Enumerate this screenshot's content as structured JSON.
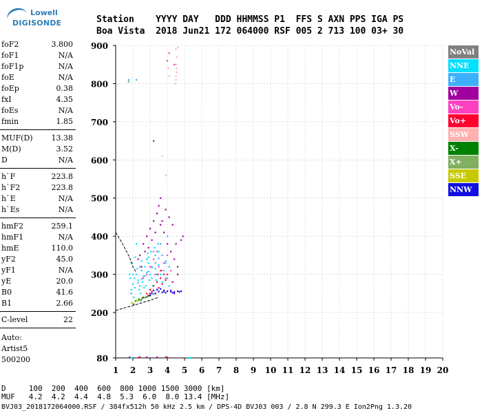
{
  "logo": {
    "line1": "Lowell",
    "line2": "DIGISONDE"
  },
  "header": {
    "row1": "Station    YYYY DAY   DDD HHMMSS P1  FFS S AXN PPS IGA PS",
    "row2": "Boa Vista  2018 Jun21 172 064000 RSF 005 2 713 100 03+ 30"
  },
  "params": [
    {
      "name": "foF2",
      "value": "3.800"
    },
    {
      "name": "foF1",
      "value": "N/A"
    },
    {
      "name": "foF1p",
      "value": "N/A"
    },
    {
      "name": "foE",
      "value": "N/A"
    },
    {
      "name": "foEp",
      "value": "0.38"
    },
    {
      "name": "fxI",
      "value": "4.35"
    },
    {
      "name": "foEs",
      "value": "N/A"
    },
    {
      "name": "fmin",
      "value": "1.85"
    },
    {
      "name": "MUF(D)",
      "value": "13.38"
    },
    {
      "name": "M(D)",
      "value": "3.52"
    },
    {
      "name": "D",
      "value": "N/A"
    },
    {
      "name": "h`F",
      "value": "223.8"
    },
    {
      "name": "h`F2",
      "value": "223.8"
    },
    {
      "name": "h`E",
      "value": "N/A"
    },
    {
      "name": "h`Es",
      "value": "N/A"
    },
    {
      "name": "hmF2",
      "value": "259.1"
    },
    {
      "name": "hmF1",
      "value": "N/A"
    },
    {
      "name": "hmE",
      "value": "110.0"
    },
    {
      "name": "yF2",
      "value": "45.0"
    },
    {
      "name": "yF1",
      "value": "N/A"
    },
    {
      "name": "yE",
      "value": "20.0"
    },
    {
      "name": "B0",
      "value": "41.6"
    },
    {
      "name": "B1",
      "value": "2.66"
    },
    {
      "name": "C-level",
      "value": "22"
    }
  ],
  "auto": {
    "line1": "Auto:",
    "line2": "Artist5",
    "line3": "500200"
  },
  "chart_data": {
    "type": "scatter",
    "title": "",
    "xlabel": "",
    "ylabel": "",
    "xlim": [
      1,
      20
    ],
    "ylim": [
      80,
      900
    ],
    "xticks": [
      1,
      2,
      3,
      4,
      5,
      6,
      7,
      8,
      9,
      10,
      11,
      12,
      13,
      14,
      15,
      16,
      17,
      18,
      19,
      20
    ],
    "yticks": [
      80,
      200,
      300,
      400,
      500,
      600,
      700,
      800,
      900
    ],
    "legend_position": "right",
    "series": [
      {
        "name": "NoVal",
        "color": "#808080",
        "points": []
      },
      {
        "name": "NNE",
        "color": "#00e0ff",
        "points": [
          [
            1.9,
            260
          ],
          [
            2.0,
            275
          ],
          [
            2.1,
            290
          ],
          [
            2.2,
            300
          ],
          [
            2.3,
            285
          ],
          [
            2.4,
            270
          ],
          [
            2.5,
            310
          ],
          [
            2.6,
            295
          ],
          [
            2.7,
            320
          ],
          [
            2.8,
            305
          ],
          [
            2.9,
            330
          ],
          [
            3.0,
            300
          ],
          [
            3.1,
            290
          ],
          [
            3.2,
            340
          ],
          [
            3.3,
            315
          ],
          [
            3.4,
            300
          ],
          [
            3.5,
            325
          ],
          [
            1.95,
            330
          ],
          [
            2.15,
            345
          ],
          [
            2.35,
            260
          ],
          [
            2.55,
            280
          ],
          [
            2.75,
            270
          ],
          [
            2.95,
            285
          ],
          [
            3.15,
            270
          ],
          [
            3.35,
            285
          ],
          [
            3.6,
            300
          ],
          [
            3.7,
            280
          ],
          [
            3.8,
            310
          ],
          [
            1.8,
            300
          ],
          [
            2.05,
            240
          ],
          [
            2.45,
            250
          ],
          [
            2.65,
            265
          ],
          [
            2.85,
            355
          ],
          [
            3.05,
            360
          ],
          [
            3.25,
            370
          ],
          [
            3.45,
            380
          ],
          [
            1.85,
            290
          ],
          [
            2.25,
            315
          ],
          [
            2.5,
            335
          ],
          [
            2.9,
            345
          ],
          [
            3.1,
            320
          ],
          [
            3.3,
            350
          ],
          [
            3.5,
            360
          ],
          [
            3.9,
            330
          ],
          [
            4.0,
            290
          ],
          [
            1.8,
            80
          ],
          [
            1.95,
            80
          ],
          [
            5.2,
            80
          ],
          [
            5.35,
            80
          ],
          [
            4.1,
            270
          ],
          [
            2.2,
            380
          ]
        ]
      },
      {
        "name": "E",
        "color": "#3db0ff",
        "points": [
          [
            1.9,
            250
          ],
          [
            2.1,
            265
          ],
          [
            2.3,
            278
          ],
          [
            2.5,
            288
          ],
          [
            2.7,
            296
          ],
          [
            2.9,
            308
          ],
          [
            3.1,
            318
          ],
          [
            3.3,
            330
          ],
          [
            3.5,
            342
          ],
          [
            3.7,
            350
          ],
          [
            3.9,
            335
          ],
          [
            4.1,
            320
          ],
          [
            2.0,
            300
          ],
          [
            2.4,
            320
          ],
          [
            2.8,
            340
          ],
          [
            3.2,
            360
          ],
          [
            3.6,
            380
          ],
          [
            4.0,
            400
          ],
          [
            2.2,
            810
          ],
          [
            1.75,
            810
          ]
        ]
      },
      {
        "name": "W",
        "color": "#a000a0",
        "points": [
          [
            2.4,
            350
          ],
          [
            2.6,
            380
          ],
          [
            2.8,
            400
          ],
          [
            3.0,
            420
          ],
          [
            3.2,
            440
          ],
          [
            3.4,
            460
          ],
          [
            3.6,
            430
          ],
          [
            3.8,
            410
          ],
          [
            4.0,
            380
          ],
          [
            4.2,
            360
          ],
          [
            4.4,
            340
          ],
          [
            4.6,
            320
          ],
          [
            3.5,
            480
          ],
          [
            3.9,
            470
          ],
          [
            4.1,
            450
          ],
          [
            4.3,
            430
          ],
          [
            2.7,
            360
          ],
          [
            3.1,
            390
          ],
          [
            3.3,
            410
          ],
          [
            3.7,
            440
          ],
          [
            4.5,
            380
          ],
          [
            4.8,
            390
          ],
          [
            4.9,
            400
          ],
          [
            3.0,
            250
          ],
          [
            3.4,
            260
          ],
          [
            3.8,
            255
          ],
          [
            4.2,
            258
          ],
          [
            4.4,
            250
          ],
          [
            2.3,
            340
          ],
          [
            2.9,
            370
          ],
          [
            1.8,
            82
          ],
          [
            2.4,
            82
          ],
          [
            2.8,
            82
          ],
          [
            3.4,
            82
          ],
          [
            3.9,
            82
          ],
          [
            4.3,
            280
          ],
          [
            4.6,
            300
          ],
          [
            2.5,
            320
          ],
          [
            3.6,
            500
          ],
          [
            3.2,
            650
          ]
        ]
      },
      {
        "name": "Vo-",
        "color": "#ff40c0",
        "points": [
          [
            2.8,
            300
          ],
          [
            3.0,
            320
          ],
          [
            3.2,
            340
          ],
          [
            3.4,
            360
          ],
          [
            3.6,
            310
          ],
          [
            3.8,
            330
          ],
          [
            4.0,
            350
          ],
          [
            3.3,
            300
          ],
          [
            3.9,
            290
          ],
          [
            4.2,
            310
          ],
          [
            2.6,
            290
          ],
          [
            3.5,
            320
          ],
          [
            4.0,
            860
          ],
          [
            4.1,
            880
          ],
          [
            4.4,
            850
          ]
        ]
      },
      {
        "name": "Vo+",
        "color": "#ff0030",
        "points": [
          [
            3.0,
            260
          ],
          [
            3.2,
            270
          ],
          [
            3.4,
            280
          ],
          [
            3.6,
            290
          ],
          [
            3.8,
            300
          ],
          [
            3.3,
            250
          ],
          [
            3.5,
            265
          ],
          [
            3.7,
            275
          ],
          [
            4.0,
            300
          ],
          [
            2.9,
            245
          ],
          [
            3.1,
            255
          ],
          [
            3.9,
            285
          ],
          [
            2.6,
            240
          ],
          [
            2.8,
            250
          ],
          [
            3.45,
            300
          ],
          [
            3.65,
            310
          ],
          [
            2.35,
            82
          ],
          [
            4.0,
            82
          ]
        ]
      },
      {
        "name": "SSW",
        "color": "#ffb0b0",
        "points": [
          [
            4.5,
            810
          ],
          [
            4.55,
            830
          ],
          [
            4.5,
            850
          ],
          [
            4.55,
            870
          ],
          [
            4.5,
            890
          ],
          [
            4.6,
            895
          ],
          [
            4.55,
            840
          ],
          [
            4.5,
            820
          ],
          [
            4.05,
            840
          ],
          [
            4.1,
            820
          ],
          [
            4.45,
            800
          ],
          [
            3.7,
            610
          ],
          [
            3.9,
            560
          ]
        ]
      },
      {
        "name": "X-",
        "color": "#008000",
        "points": [
          [
            1.95,
            225
          ],
          [
            2.15,
            230
          ],
          [
            2.35,
            235
          ],
          [
            2.55,
            238
          ],
          [
            2.75,
            240
          ],
          [
            2.95,
            245
          ],
          [
            2.05,
            222
          ],
          [
            2.45,
            232
          ],
          [
            2.85,
            242
          ]
        ]
      },
      {
        "name": "X+",
        "color": "#80b060",
        "points": [
          [
            2.5,
            236
          ],
          [
            2.7,
            239
          ],
          [
            3.0,
            244
          ],
          [
            3.2,
            248
          ],
          [
            2.3,
            231
          ],
          [
            1.75,
            805
          ]
        ]
      },
      {
        "name": "SSE",
        "color": "#c8c800",
        "points": [
          [
            1.95,
            225
          ],
          [
            2.2,
            232
          ]
        ]
      },
      {
        "name": "NNW",
        "color": "#1010e0",
        "points": [
          [
            3.2,
            258
          ],
          [
            3.4,
            260
          ],
          [
            3.6,
            262
          ],
          [
            3.8,
            258
          ],
          [
            4.0,
            256
          ],
          [
            4.2,
            255
          ],
          [
            4.4,
            254
          ],
          [
            4.6,
            256
          ],
          [
            4.8,
            256
          ],
          [
            3.1,
            250
          ],
          [
            3.5,
            255
          ],
          [
            3.9,
            252
          ],
          [
            4.3,
            252
          ],
          [
            4.7,
            254
          ],
          [
            3.0,
            245
          ],
          [
            3.3,
            250
          ],
          [
            3.7,
            253
          ]
        ]
      }
    ],
    "profile_lines": [
      {
        "name": "profile",
        "color": "#000000",
        "points": [
          [
            1.0,
            205
          ],
          [
            1.5,
            212
          ],
          [
            2.0,
            218
          ],
          [
            2.5,
            225
          ],
          [
            3.0,
            232
          ],
          [
            3.5,
            240
          ]
        ]
      },
      {
        "name": "trace",
        "color": "#000000",
        "points": [
          [
            1.0,
            410
          ],
          [
            1.4,
            380
          ],
          [
            1.8,
            345
          ],
          [
            2.0,
            320
          ],
          [
            2.2,
            305
          ]
        ]
      }
    ]
  },
  "bottom": {
    "d_row": "D     100  200  400  600  800 1000 1500 3000 [km]",
    "muf_row": "MUF   4.2  4.2  4.4  4.8  5.3  6.0  8.0 13.4 [MHz]"
  },
  "footer": "BVJ03_2018172064000.RSF / 384fx512h 50 kHz 2.5 km / DPS-4D BVJ03 003 / 2.8 N 299.3 E Ion2Png 1.3.20"
}
